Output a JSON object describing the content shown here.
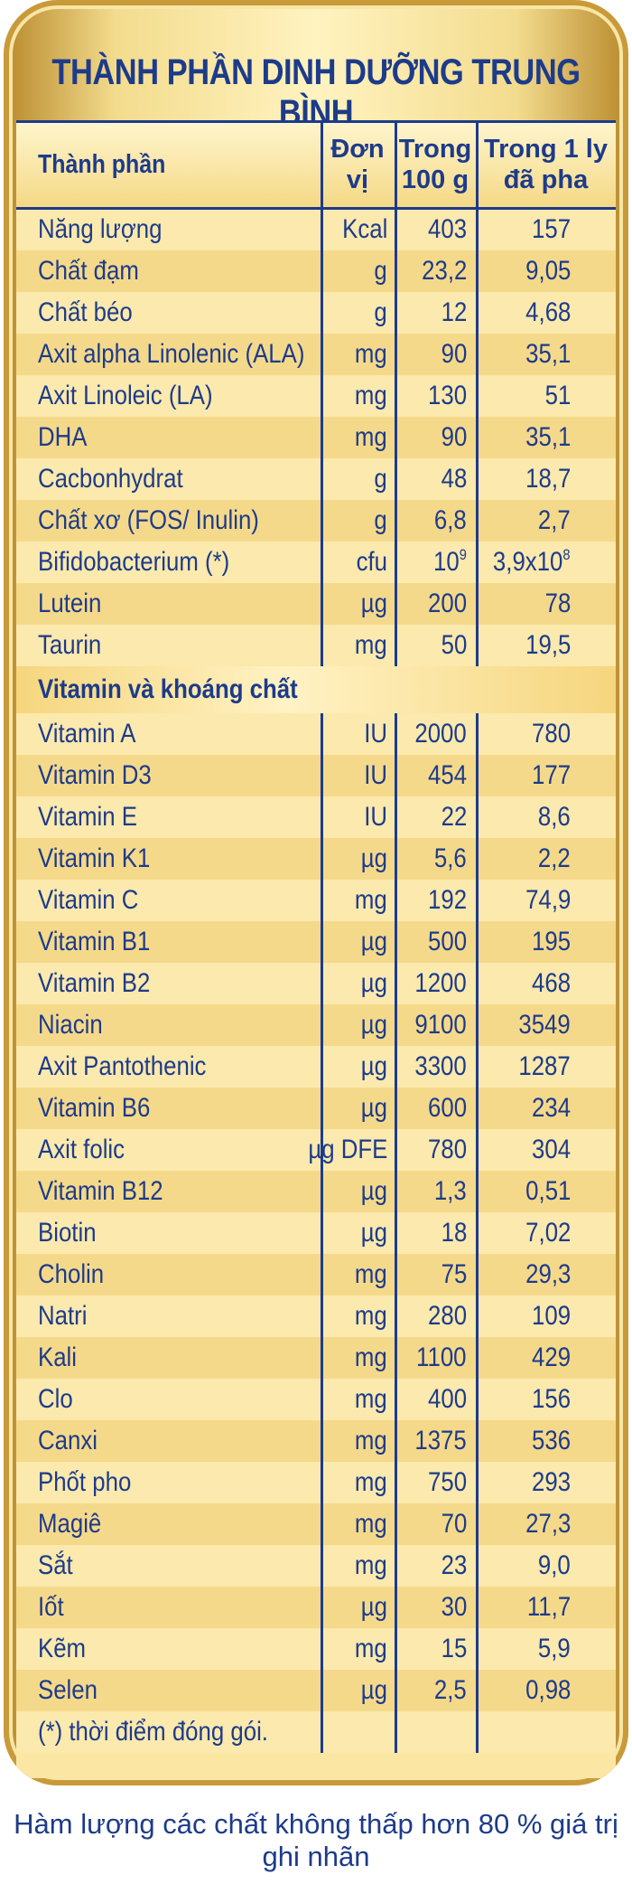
{
  "title": "THÀNH PHẦN DINH DƯỠNG TRUNG BÌNH",
  "columns": {
    "name": "Thành phần",
    "unit_line1": "Đơn",
    "unit_line2": "vị",
    "per100_line1": "Trong",
    "per100_line2": "100 g",
    "perglass_line1": "Trong 1 ly",
    "perglass_line2": "đã pha"
  },
  "rows_main": [
    {
      "name": "Năng lượng",
      "unit": "Kcal",
      "per100": "403",
      "perglass": "157"
    },
    {
      "name": "Chất đạm",
      "unit": "g",
      "per100": "23,2",
      "perglass": "9,05"
    },
    {
      "name": "Chất béo",
      "unit": "g",
      "per100": "12",
      "perglass": "4,68"
    },
    {
      "name": "Axit alpha Linolenic (ALA)",
      "unit": "mg",
      "per100": "90",
      "perglass": "35,1"
    },
    {
      "name": "Axit Linoleic (LA)",
      "unit": "mg",
      "per100": "130",
      "perglass": "51"
    },
    {
      "name": "DHA",
      "unit": "mg",
      "per100": "90",
      "perglass": "35,1"
    },
    {
      "name": "Cacbonhydrat",
      "unit": "g",
      "per100": "48",
      "perglass": "18,7"
    },
    {
      "name": "Chất xơ (FOS/ Inulin)",
      "unit": "g",
      "per100": "6,8",
      "perglass": "2,7"
    },
    {
      "name": "Bifidobacterium (*)",
      "unit": "cfu",
      "per100": "10",
      "per100_sup": "9",
      "perglass": "3,9x10",
      "perglass_sup": "8"
    },
    {
      "name": "Lutein",
      "unit": "µg",
      "per100": "200",
      "perglass": "78"
    },
    {
      "name": "Taurin",
      "unit": "mg",
      "per100": "50",
      "perglass": "19,5"
    }
  ],
  "section_title": "Vitamin và khoáng chất",
  "rows_vitamins": [
    {
      "name": "Vitamin A",
      "unit": "IU",
      "per100": "2000",
      "perglass": "780"
    },
    {
      "name": "Vitamin D3",
      "unit": "IU",
      "per100": "454",
      "perglass": "177"
    },
    {
      "name": "Vitamin E",
      "unit": "IU",
      "per100": "22",
      "perglass": "8,6"
    },
    {
      "name": "Vitamin K1",
      "unit": "µg",
      "per100": "5,6",
      "perglass": "2,2"
    },
    {
      "name": "Vitamin C",
      "unit": "mg",
      "per100": "192",
      "perglass": "74,9"
    },
    {
      "name": "Vitamin B1",
      "unit": "µg",
      "per100": "500",
      "perglass": "195"
    },
    {
      "name": "Vitamin B2",
      "unit": "µg",
      "per100": "1200",
      "perglass": "468"
    },
    {
      "name": "Niacin",
      "unit": "µg",
      "per100": "9100",
      "perglass": "3549"
    },
    {
      "name": "Axit Pantothenic",
      "unit": "µg",
      "per100": "3300",
      "perglass": "1287"
    },
    {
      "name": "Vitamin B6",
      "unit": "µg",
      "per100": "600",
      "perglass": "234"
    },
    {
      "name": "Axit folic",
      "unit": "µg DFE",
      "per100": "780",
      "perglass": "304"
    },
    {
      "name": "Vitamin B12",
      "unit": "µg",
      "per100": "1,3",
      "perglass": "0,51"
    },
    {
      "name": "Biotin",
      "unit": "µg",
      "per100": "18",
      "perglass": "7,02"
    },
    {
      "name": "Cholin",
      "unit": "mg",
      "per100": "75",
      "perglass": "29,3"
    },
    {
      "name": "Natri",
      "unit": "mg",
      "per100": "280",
      "perglass": "109"
    },
    {
      "name": "Kali",
      "unit": "mg",
      "per100": "1100",
      "perglass": "429"
    },
    {
      "name": "Clo",
      "unit": "mg",
      "per100": "400",
      "perglass": "156"
    },
    {
      "name": "Canxi",
      "unit": "mg",
      "per100": "1375",
      "perglass": "536"
    },
    {
      "name": "Phốt pho",
      "unit": "mg",
      "per100": "750",
      "perglass": "293"
    },
    {
      "name": "Magiê",
      "unit": "mg",
      "per100": "70",
      "perglass": "27,3"
    },
    {
      "name": "Sắt",
      "unit": "mg",
      "per100": "23",
      "perglass": "9,0"
    },
    {
      "name": "Iốt",
      "unit": "µg",
      "per100": "30",
      "perglass": "11,7"
    },
    {
      "name": "Kẽm",
      "unit": "mg",
      "per100": "15",
      "perglass": "5,9"
    },
    {
      "name": "Selen",
      "unit": "µg",
      "per100": "2,5",
      "perglass": "0,98"
    }
  ],
  "footnote": "(*) thời điểm đóng gói.",
  "footer": "Hàm lượng các chất không thấp hơn 80 % giá trị ghi nhãn",
  "colors": {
    "text": "#1d3b8a",
    "gold_dark": "#b98a2c",
    "row_light": "#fbe9ad",
    "row_dark": "#f5d98a"
  }
}
